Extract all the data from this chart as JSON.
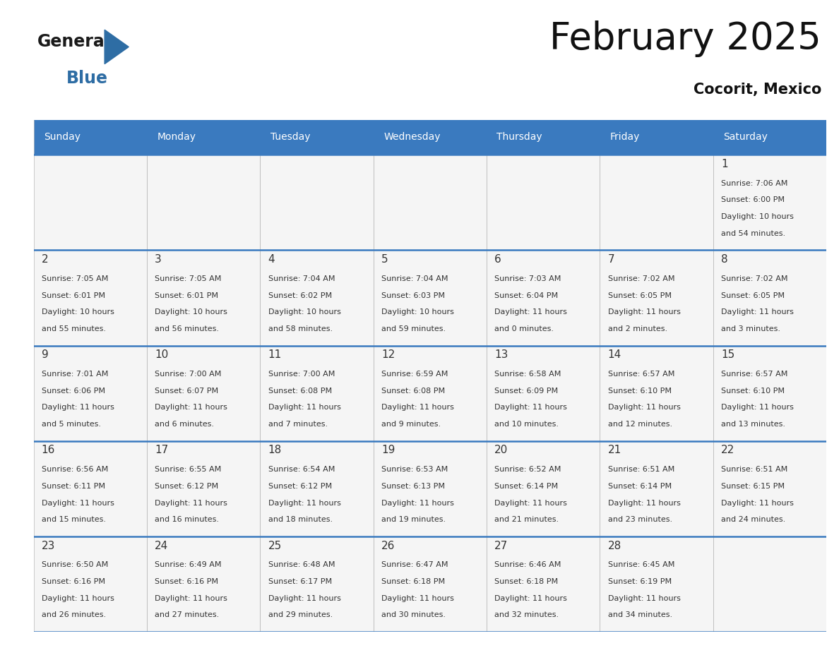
{
  "title": "February 2025",
  "subtitle": "Cocorit, Mexico",
  "header_bg": "#3a7abf",
  "header_text": "#ffffff",
  "text_color": "#333333",
  "border_color": "#3a7abf",
  "light_border": "#aaaaaa",
  "cell_bg": "#f5f5f5",
  "days_of_week": [
    "Sunday",
    "Monday",
    "Tuesday",
    "Wednesday",
    "Thursday",
    "Friday",
    "Saturday"
  ],
  "weeks": [
    [
      {
        "day": null,
        "info": null
      },
      {
        "day": null,
        "info": null
      },
      {
        "day": null,
        "info": null
      },
      {
        "day": null,
        "info": null
      },
      {
        "day": null,
        "info": null
      },
      {
        "day": null,
        "info": null
      },
      {
        "day": "1",
        "info": "Sunrise: 7:06 AM\nSunset: 6:00 PM\nDaylight: 10 hours\nand 54 minutes."
      }
    ],
    [
      {
        "day": "2",
        "info": "Sunrise: 7:05 AM\nSunset: 6:01 PM\nDaylight: 10 hours\nand 55 minutes."
      },
      {
        "day": "3",
        "info": "Sunrise: 7:05 AM\nSunset: 6:01 PM\nDaylight: 10 hours\nand 56 minutes."
      },
      {
        "day": "4",
        "info": "Sunrise: 7:04 AM\nSunset: 6:02 PM\nDaylight: 10 hours\nand 58 minutes."
      },
      {
        "day": "5",
        "info": "Sunrise: 7:04 AM\nSunset: 6:03 PM\nDaylight: 10 hours\nand 59 minutes."
      },
      {
        "day": "6",
        "info": "Sunrise: 7:03 AM\nSunset: 6:04 PM\nDaylight: 11 hours\nand 0 minutes."
      },
      {
        "day": "7",
        "info": "Sunrise: 7:02 AM\nSunset: 6:05 PM\nDaylight: 11 hours\nand 2 minutes."
      },
      {
        "day": "8",
        "info": "Sunrise: 7:02 AM\nSunset: 6:05 PM\nDaylight: 11 hours\nand 3 minutes."
      }
    ],
    [
      {
        "day": "9",
        "info": "Sunrise: 7:01 AM\nSunset: 6:06 PM\nDaylight: 11 hours\nand 5 minutes."
      },
      {
        "day": "10",
        "info": "Sunrise: 7:00 AM\nSunset: 6:07 PM\nDaylight: 11 hours\nand 6 minutes."
      },
      {
        "day": "11",
        "info": "Sunrise: 7:00 AM\nSunset: 6:08 PM\nDaylight: 11 hours\nand 7 minutes."
      },
      {
        "day": "12",
        "info": "Sunrise: 6:59 AM\nSunset: 6:08 PM\nDaylight: 11 hours\nand 9 minutes."
      },
      {
        "day": "13",
        "info": "Sunrise: 6:58 AM\nSunset: 6:09 PM\nDaylight: 11 hours\nand 10 minutes."
      },
      {
        "day": "14",
        "info": "Sunrise: 6:57 AM\nSunset: 6:10 PM\nDaylight: 11 hours\nand 12 minutes."
      },
      {
        "day": "15",
        "info": "Sunrise: 6:57 AM\nSunset: 6:10 PM\nDaylight: 11 hours\nand 13 minutes."
      }
    ],
    [
      {
        "day": "16",
        "info": "Sunrise: 6:56 AM\nSunset: 6:11 PM\nDaylight: 11 hours\nand 15 minutes."
      },
      {
        "day": "17",
        "info": "Sunrise: 6:55 AM\nSunset: 6:12 PM\nDaylight: 11 hours\nand 16 minutes."
      },
      {
        "day": "18",
        "info": "Sunrise: 6:54 AM\nSunset: 6:12 PM\nDaylight: 11 hours\nand 18 minutes."
      },
      {
        "day": "19",
        "info": "Sunrise: 6:53 AM\nSunset: 6:13 PM\nDaylight: 11 hours\nand 19 minutes."
      },
      {
        "day": "20",
        "info": "Sunrise: 6:52 AM\nSunset: 6:14 PM\nDaylight: 11 hours\nand 21 minutes."
      },
      {
        "day": "21",
        "info": "Sunrise: 6:51 AM\nSunset: 6:14 PM\nDaylight: 11 hours\nand 23 minutes."
      },
      {
        "day": "22",
        "info": "Sunrise: 6:51 AM\nSunset: 6:15 PM\nDaylight: 11 hours\nand 24 minutes."
      }
    ],
    [
      {
        "day": "23",
        "info": "Sunrise: 6:50 AM\nSunset: 6:16 PM\nDaylight: 11 hours\nand 26 minutes."
      },
      {
        "day": "24",
        "info": "Sunrise: 6:49 AM\nSunset: 6:16 PM\nDaylight: 11 hours\nand 27 minutes."
      },
      {
        "day": "25",
        "info": "Sunrise: 6:48 AM\nSunset: 6:17 PM\nDaylight: 11 hours\nand 29 minutes."
      },
      {
        "day": "26",
        "info": "Sunrise: 6:47 AM\nSunset: 6:18 PM\nDaylight: 11 hours\nand 30 minutes."
      },
      {
        "day": "27",
        "info": "Sunrise: 6:46 AM\nSunset: 6:18 PM\nDaylight: 11 hours\nand 32 minutes."
      },
      {
        "day": "28",
        "info": "Sunrise: 6:45 AM\nSunset: 6:19 PM\nDaylight: 11 hours\nand 34 minutes."
      },
      {
        "day": null,
        "info": null
      }
    ]
  ],
  "logo_triangle_color": "#2e6da4",
  "title_fontsize": 38,
  "subtitle_fontsize": 15,
  "dow_fontsize": 10,
  "day_num_fontsize": 11,
  "info_fontsize": 8
}
